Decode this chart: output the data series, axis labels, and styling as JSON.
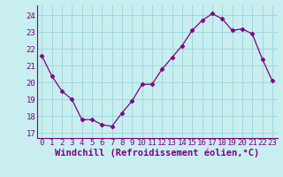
{
  "x": [
    0,
    1,
    2,
    3,
    4,
    5,
    6,
    7,
    8,
    9,
    10,
    11,
    12,
    13,
    14,
    15,
    16,
    17,
    18,
    19,
    20,
    21,
    22,
    23
  ],
  "y": [
    21.6,
    20.4,
    19.5,
    19.0,
    17.8,
    17.8,
    17.5,
    17.4,
    18.2,
    18.9,
    19.9,
    19.9,
    20.8,
    21.5,
    22.2,
    23.1,
    23.7,
    24.1,
    23.8,
    23.1,
    23.2,
    22.9,
    21.4,
    20.1
  ],
  "line_color": "#800080",
  "marker": "D",
  "marker_size": 2.5,
  "bg_color": "#c8eef0",
  "grid_color": "#a0d8dc",
  "xlabel": "Windchill (Refroidissement éolien,°C)",
  "xlabel_color": "#800080",
  "ylabel_ticks": [
    17,
    18,
    19,
    20,
    21,
    22,
    23,
    24
  ],
  "xtick_labels": [
    "0",
    "1",
    "2",
    "3",
    "4",
    "5",
    "6",
    "7",
    "8",
    "9",
    "10",
    "11",
    "12",
    "13",
    "14",
    "15",
    "16",
    "17",
    "18",
    "19",
    "20",
    "21",
    "22",
    "23"
  ],
  "ylim": [
    16.7,
    24.6
  ],
  "xlim": [
    -0.5,
    23.5
  ],
  "tick_color": "#800080",
  "tick_fontsize": 6.5,
  "xlabel_fontsize": 7.5
}
